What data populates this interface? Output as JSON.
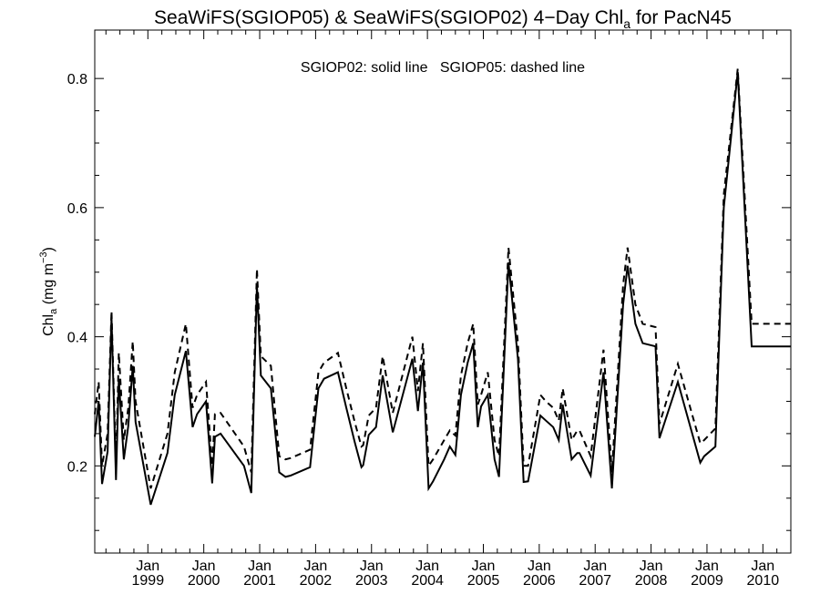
{
  "chart_data": {
    "type": "line",
    "title": {
      "prefix": "SeaWiFS(SGIOP05) & SeaWiFS(SGIOP02) 4−Day Chl",
      "subscript": "a",
      "suffix": " for PacN45"
    },
    "annotation": "SGIOP02: solid line   SGIOP05: dashed line",
    "ylabel": {
      "prefix": "Chl",
      "subscript": "a",
      "middle": " (mg m",
      "superscript": "−3",
      "suffix": ")"
    },
    "xlabel": "",
    "ylim": [
      0.065,
      0.875
    ],
    "yticks": [
      0.2,
      0.4,
      0.6,
      0.8
    ],
    "ytick_labels": [
      "0.2",
      "0.4",
      "0.6",
      "0.8"
    ],
    "xlim": [
      1998.05,
      2010.5
    ],
    "xticks": [
      {
        "month": "Jan",
        "year": "1999",
        "x": 1999.0
      },
      {
        "month": "Jan",
        "year": "2000",
        "x": 2000.0
      },
      {
        "month": "Jan",
        "year": "2001",
        "x": 2001.0
      },
      {
        "month": "Jan",
        "year": "2002",
        "x": 2002.0
      },
      {
        "month": "Jan",
        "year": "2003",
        "x": 2003.0
      },
      {
        "month": "Jan",
        "year": "2004",
        "x": 2004.0
      },
      {
        "month": "Jan",
        "year": "2005",
        "x": 2005.0
      },
      {
        "month": "Jan",
        "year": "2006",
        "x": 2006.0
      },
      {
        "month": "Jan",
        "year": "2007",
        "x": 2007.0
      },
      {
        "month": "Jan",
        "year": "2008",
        "x": 2008.0
      },
      {
        "month": "Jan",
        "year": "2009",
        "x": 2009.0
      },
      {
        "month": "Jan",
        "year": "2010",
        "x": 2010.0
      }
    ],
    "grid": false,
    "series": [
      {
        "name": "SGIOP02",
        "style": "solid",
        "x": [
          1998.05,
          1998.12,
          1998.18,
          1998.28,
          1998.35,
          1998.43,
          1998.48,
          1998.57,
          1998.65,
          1998.73,
          1998.78,
          1999.05,
          1999.35,
          1999.48,
          1999.68,
          1999.8,
          1999.88,
          2000.04,
          2000.15,
          2000.2,
          2000.3,
          2000.72,
          2000.85,
          2000.95,
          2001.02,
          2001.2,
          2001.35,
          2001.46,
          2001.55,
          2001.9,
          2002.05,
          2002.15,
          2002.4,
          2002.55,
          2002.7,
          2002.82,
          2002.85,
          2002.95,
          2003.08,
          2003.2,
          2003.38,
          2003.73,
          2003.83,
          2003.92,
          2004.02,
          2004.1,
          2004.3,
          2004.4,
          2004.5,
          2004.6,
          2004.72,
          2004.82,
          2004.9,
          2004.96,
          2005.08,
          2005.2,
          2005.28,
          2005.45,
          2005.62,
          2005.72,
          2005.8,
          2006.02,
          2006.12,
          2006.25,
          2006.35,
          2006.42,
          2006.58,
          2006.68,
          2006.72,
          2006.92,
          2007.15,
          2007.3,
          2007.5,
          2007.58,
          2007.72,
          2007.85,
          2008.08,
          2008.15,
          2008.48,
          2008.88,
          2008.95,
          2009.15,
          2009.3,
          2009.55,
          2009.8,
          2010.08,
          2010.25,
          2010.5
        ],
        "y": [
          0.245,
          0.3,
          0.172,
          0.222,
          0.43,
          0.178,
          0.335,
          0.21,
          0.262,
          0.355,
          0.268,
          0.14,
          0.22,
          0.31,
          0.378,
          0.26,
          0.28,
          0.3,
          0.173,
          0.245,
          0.25,
          0.2,
          0.158,
          0.48,
          0.34,
          0.32,
          0.19,
          0.183,
          0.185,
          0.198,
          0.32,
          0.335,
          0.345,
          0.29,
          0.237,
          0.198,
          0.201,
          0.248,
          0.26,
          0.34,
          0.252,
          0.366,
          0.285,
          0.36,
          0.165,
          0.176,
          0.21,
          0.23,
          0.217,
          0.31,
          0.36,
          0.39,
          0.26,
          0.292,
          0.31,
          0.21,
          0.183,
          0.515,
          0.365,
          0.175,
          0.176,
          0.278,
          0.27,
          0.26,
          0.24,
          0.295,
          0.21,
          0.22,
          0.22,
          0.185,
          0.345,
          0.165,
          0.45,
          0.51,
          0.42,
          0.39,
          0.385,
          0.243,
          0.33,
          0.205,
          0.215,
          0.23,
          0.6,
          0.81,
          0.385,
          0.385,
          0.385,
          0.385
        ]
      },
      {
        "name": "SGIOP05",
        "style": "dashed",
        "x": [
          1998.05,
          1998.12,
          1998.18,
          1998.28,
          1998.35,
          1998.43,
          1998.48,
          1998.57,
          1998.65,
          1998.73,
          1998.78,
          1999.05,
          1999.35,
          1999.48,
          1999.68,
          1999.8,
          1999.88,
          2000.04,
          2000.15,
          2000.2,
          2000.3,
          2000.72,
          2000.85,
          2000.95,
          2001.02,
          2001.2,
          2001.35,
          2001.46,
          2001.55,
          2001.9,
          2002.05,
          2002.15,
          2002.4,
          2002.55,
          2002.7,
          2002.82,
          2002.85,
          2002.95,
          2003.08,
          2003.2,
          2003.38,
          2003.73,
          2003.83,
          2003.92,
          2004.02,
          2004.1,
          2004.3,
          2004.4,
          2004.5,
          2004.6,
          2004.72,
          2004.82,
          2004.9,
          2004.96,
          2005.08,
          2005.2,
          2005.28,
          2005.45,
          2005.62,
          2005.72,
          2005.8,
          2006.02,
          2006.12,
          2006.25,
          2006.35,
          2006.42,
          2006.58,
          2006.68,
          2006.72,
          2006.92,
          2007.15,
          2007.3,
          2007.5,
          2007.58,
          2007.72,
          2007.85,
          2008.08,
          2008.15,
          2008.48,
          2008.88,
          2008.95,
          2009.15,
          2009.3,
          2009.55,
          2009.8,
          2010.08,
          2010.25,
          2010.5
        ],
        "y": [
          0.28,
          0.33,
          0.2,
          0.25,
          0.44,
          0.198,
          0.375,
          0.24,
          0.29,
          0.393,
          0.3,
          0.165,
          0.25,
          0.345,
          0.42,
          0.29,
          0.31,
          0.33,
          0.2,
          0.28,
          0.282,
          0.23,
          0.19,
          0.505,
          0.37,
          0.355,
          0.215,
          0.21,
          0.212,
          0.225,
          0.345,
          0.36,
          0.375,
          0.32,
          0.268,
          0.23,
          0.232,
          0.278,
          0.29,
          0.37,
          0.282,
          0.4,
          0.316,
          0.39,
          0.2,
          0.21,
          0.24,
          0.255,
          0.247,
          0.34,
          0.39,
          0.42,
          0.295,
          0.31,
          0.345,
          0.24,
          0.215,
          0.538,
          0.39,
          0.2,
          0.2,
          0.31,
          0.3,
          0.29,
          0.27,
          0.32,
          0.24,
          0.255,
          0.255,
          0.215,
          0.38,
          0.19,
          0.48,
          0.538,
          0.45,
          0.42,
          0.415,
          0.265,
          0.358,
          0.235,
          0.24,
          0.258,
          0.62,
          0.815,
          0.42,
          0.42,
          0.42,
          0.42
        ]
      }
    ]
  }
}
